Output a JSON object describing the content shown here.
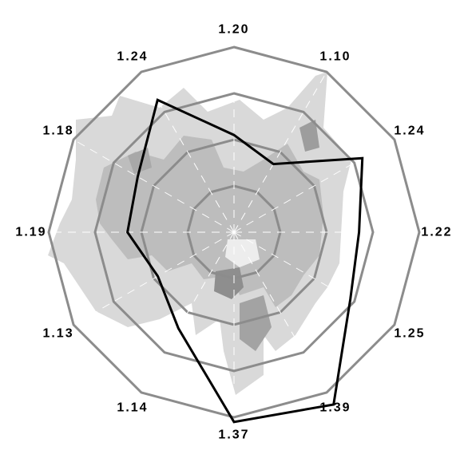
{
  "chart_data": {
    "type": "radar",
    "title": "",
    "spoke_labels": [
      "1.20",
      "1.10",
      "1.24",
      "1.22",
      "1.25",
      "1.39",
      "1.37",
      "1.14",
      "1.13",
      "1.19",
      "1.18",
      "1.24"
    ],
    "rings": 4,
    "series": [
      {
        "values": [
          2.1,
          1.7,
          3.2,
          2.7,
          2.9,
          4.3,
          4.1,
          2.4,
          1.9,
          2.3,
          2.4,
          3.3
        ]
      }
    ],
    "colors": {
      "grid": "#8c8c8c",
      "series": "#000000",
      "background_map_light": "#d6d6d6",
      "background_map_mid": "#b8b8b8",
      "background_map_dark": "#8a8a8a"
    },
    "background": "grayscale map of districts behind the radar grid"
  }
}
